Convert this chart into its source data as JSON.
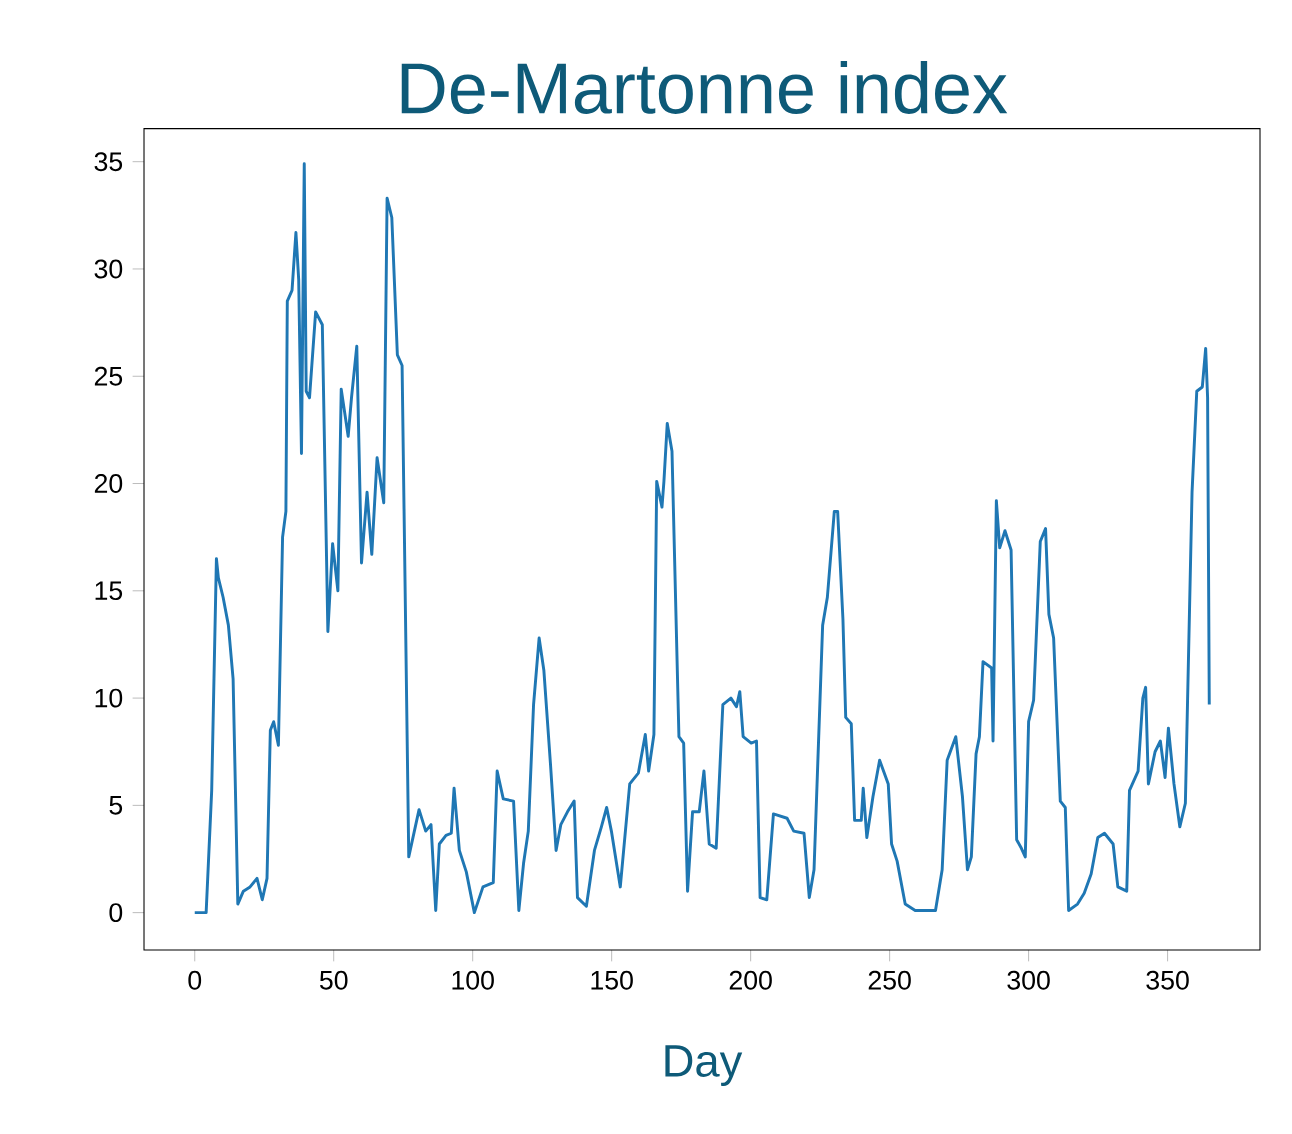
{
  "chart_data": {
    "type": "line",
    "title": "De-Martonne index",
    "xlabel": "Day",
    "xlim": [
      -18.25,
      383.25
    ],
    "ylim": [
      -1.74,
      36.54
    ],
    "xticks": [
      0,
      50,
      100,
      150,
      200,
      250,
      300,
      350
    ],
    "yticks": [
      0,
      5,
      10,
      15,
      20,
      25,
      30,
      35
    ],
    "grid": false,
    "marker": "none",
    "line_style": "solid",
    "series": [
      {
        "color": "#1f77b4",
        "x": [
          0,
          4.1,
          6.1,
          7.8,
          8.5,
          10.2,
          12.1,
          13.8,
          15.5,
          17.5,
          19.9,
          22.4,
          24.3,
          26,
          27.2,
          28.4,
          30.1,
          31.6,
          32.8,
          33.3,
          35,
          36.4,
          37.4,
          38.4,
          39.4,
          40.1,
          41.3,
          43.5,
          45.9,
          47.9,
          49.6,
          51.5,
          52.7,
          55.2,
          56.4,
          58.3,
          60,
          62,
          63.7,
          65.6,
          68,
          69.2,
          70.9,
          72.9,
          74.6,
          77,
          80.7,
          83.1,
          85,
          86.7,
          88,
          90.4,
          92.3,
          93.3,
          95.2,
          97.7,
          100.6,
          103.7,
          107.4,
          108.8,
          111,
          114.7,
          116.6,
          118.3,
          120,
          121.9,
          123.9,
          125.6,
          128,
          130,
          131.7,
          134.1,
          136.5,
          137.7,
          140.9,
          143.8,
          146.3,
          148.2,
          149.9,
          153.1,
          156.5,
          159.6,
          162.1,
          163.3,
          165.2,
          166.2,
          168.1,
          168.8,
          170,
          171.7,
          174.2,
          175.9,
          177.3,
          179.1,
          181.5,
          183.2,
          185.1,
          187.6,
          190,
          192.9,
          194.9,
          196.1,
          197.3,
          200.2,
          202.1,
          203.4,
          205.8,
          208.2,
          213.1,
          215.5,
          219.2,
          221.1,
          222.8,
          225.9,
          227.6,
          230.1,
          231.3,
          233.2,
          234.2,
          236.2,
          237.4,
          239.8,
          240.5,
          241.8,
          244,
          246.4,
          249.5,
          250.7,
          252.7,
          255.6,
          259.2,
          266.5,
          268.9,
          270.7,
          273.8,
          276.2,
          278,
          279.4,
          281.1,
          282.3,
          283.6,
          286.7,
          287.2,
          288.4,
          289.6,
          291.5,
          293.7,
          295.7,
          297.4,
          298.8,
          300,
          301.8,
          304.2,
          306.1,
          307.3,
          309,
          311.4,
          313.2,
          314.4,
          317.6,
          320,
          322.5,
          324.9,
          327.3,
          330.4,
          332.1,
          335.3,
          336.3,
          339.4,
          341.1,
          342.1,
          343.1,
          345.5,
          347.4,
          349.1,
          350.3,
          352.3,
          354.4,
          356.4,
          358.8,
          360.5,
          362.5,
          363.7,
          364.4,
          365
        ],
        "values": [
          0,
          0,
          5.7,
          16.5,
          15.6,
          14.7,
          13.4,
          10.9,
          0.4,
          1.0,
          1.2,
          1.6,
          0.6,
          1.6,
          8.5,
          8.9,
          7.8,
          17.5,
          18.7,
          28.5,
          29,
          31.7,
          29.5,
          21.4,
          34.9,
          24.3,
          24,
          28,
          27.4,
          13.1,
          17.2,
          15,
          24.4,
          22.2,
          24,
          26.4,
          16.3,
          19.6,
          16.7,
          21.2,
          19.1,
          33.3,
          32.4,
          26,
          25.5,
          2.6,
          4.8,
          3.8,
          4.1,
          0.1,
          3.2,
          3.6,
          3.7,
          5.8,
          2.9,
          1.9,
          0,
          1.2,
          1.4,
          6.6,
          5.3,
          5.2,
          0.1,
          2.3,
          3.8,
          9.7,
          12.8,
          11.3,
          6.9,
          2.9,
          4.1,
          4.7,
          5.2,
          0.7,
          0.3,
          2.9,
          4,
          4.9,
          3.8,
          1.2,
          6,
          6.5,
          8.3,
          6.6,
          8.3,
          20.1,
          18.9,
          20.1,
          22.8,
          21.5,
          8.2,
          7.9,
          1,
          4.7,
          4.7,
          6.6,
          3.2,
          3,
          9.7,
          10,
          9.6,
          10.3,
          8.2,
          7.9,
          8,
          0.7,
          0.6,
          4.6,
          4.4,
          3.8,
          3.7,
          0.7,
          2,
          13.4,
          14.7,
          18.7,
          18.7,
          13.7,
          9.1,
          8.8,
          4.3,
          4.3,
          5.8,
          3.5,
          5.4,
          7.1,
          6,
          3.2,
          2.4,
          0.4,
          0.1,
          0.1,
          2,
          7.1,
          8.2,
          5.4,
          2,
          2.6,
          7.4,
          8.2,
          11.7,
          11.4,
          8,
          19.2,
          17,
          17.8,
          16.9,
          3.4,
          3,
          2.6,
          8.9,
          9.9,
          17.3,
          17.9,
          13.9,
          12.8,
          5.2,
          4.9,
          0.1,
          0.4,
          0.9,
          1.8,
          3.5,
          3.7,
          3.2,
          1.2,
          1,
          5.7,
          6.6,
          10,
          10.5,
          6,
          7.5,
          8,
          6.3,
          8.6,
          6,
          4,
          5.1,
          19.6,
          24.3,
          24.5,
          26.3,
          24,
          9.7
        ]
      }
    ]
  }
}
